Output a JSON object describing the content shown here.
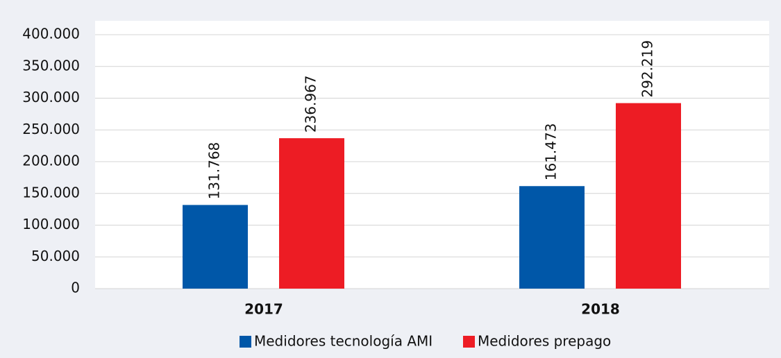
{
  "chart_data": {
    "type": "bar",
    "categories": [
      "2017",
      "2018"
    ],
    "series": [
      {
        "name": "Medidores tecnología AMI",
        "color": "#0057a8",
        "values": [
          131768,
          161473
        ],
        "value_labels": [
          "131.768",
          "161.473"
        ]
      },
      {
        "name": "Medidores prepago",
        "color": "#ed1c24",
        "values": [
          236967,
          292219
        ],
        "value_labels": [
          "236.967",
          "292.219"
        ]
      }
    ],
    "ylim": [
      0,
      400000
    ],
    "yticks": [
      0,
      {
        "value": 50000,
        "label": "50.000"
      },
      {
        "value": 100000,
        "label": "100.000"
      },
      {
        "value": 150000,
        "label": "150.000"
      },
      {
        "value": 200000,
        "label": "200.000"
      },
      {
        "value": 250000,
        "label": "250.000"
      },
      {
        "value": 300000,
        "label": "300.000"
      },
      {
        "value": 350000,
        "label": "350.000"
      },
      {
        "value": 400000,
        "label": "400.000"
      }
    ],
    "grid": true,
    "legend": "bottom"
  }
}
